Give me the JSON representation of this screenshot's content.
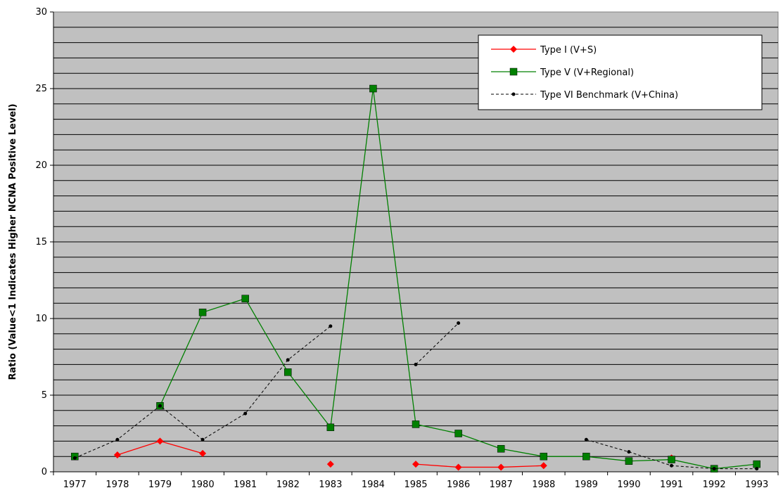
{
  "chart_data": {
    "type": "line",
    "title": "",
    "xlabel": "",
    "ylabel": "Ratio (Value<1 Indicates Higher NCNA Positive Level)",
    "x": [
      "1977",
      "1978",
      "1979",
      "1980",
      "1981",
      "1982",
      "1983",
      "1984",
      "1985",
      "1986",
      "1987",
      "1988",
      "1989",
      "1990",
      "1991",
      "1992",
      "1993"
    ],
    "ylim": [
      0,
      30
    ],
    "y_major_ticks": [
      0,
      5,
      10,
      15,
      20,
      25,
      30
    ],
    "y_minor_step": 1,
    "grid": true,
    "plot_background": "#c0c0c0",
    "legend_position": "top-right",
    "series": [
      {
        "name": "Type I (V+S)",
        "color": "#ff0000",
        "marker": "diamond",
        "line_style": "solid",
        "values": [
          null,
          1.1,
          2.0,
          1.2,
          null,
          null,
          0.5,
          null,
          0.5,
          0.3,
          0.3,
          0.4,
          null,
          null,
          0.9,
          null,
          null
        ]
      },
      {
        "name": "Type V (V+Regional)",
        "color": "#008000",
        "marker": "square",
        "line_style": "solid",
        "values": [
          1.0,
          null,
          4.3,
          10.4,
          11.3,
          6.5,
          2.9,
          25.0,
          3.1,
          2.5,
          1.5,
          1.0,
          1.0,
          0.7,
          0.8,
          0.2,
          0.5
        ]
      },
      {
        "name": "Type VI Benchmark (V+China)",
        "color": "#000000",
        "marker": "dot",
        "line_style": "dashed",
        "values": [
          0.9,
          2.1,
          4.3,
          2.1,
          3.8,
          7.3,
          9.5,
          null,
          7.0,
          9.7,
          null,
          null,
          2.1,
          1.3,
          0.4,
          0.2,
          0.2
        ]
      }
    ]
  }
}
